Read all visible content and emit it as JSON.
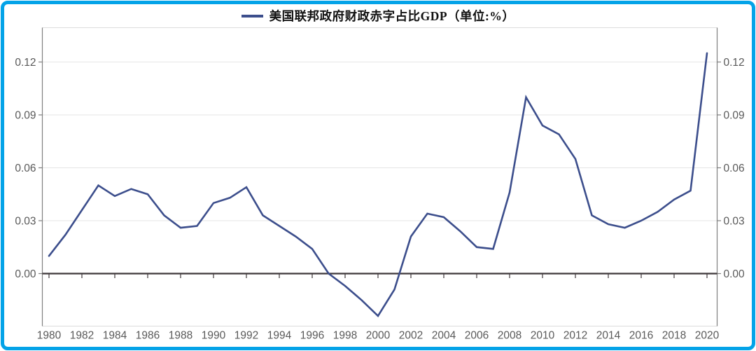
{
  "window": {
    "background_color": "#ffffff",
    "border_color": "#04A3E8"
  },
  "legend": {
    "label": "美国联邦政府财政赤字占比GDP（单位:%）"
  },
  "chart_data": {
    "type": "line",
    "title": "美国联邦政府财政赤字占比GDP（单位:%）",
    "x": [
      1980,
      1981,
      1982,
      1983,
      1984,
      1985,
      1986,
      1987,
      1988,
      1989,
      1990,
      1991,
      1992,
      1993,
      1994,
      1995,
      1996,
      1997,
      1998,
      1999,
      2000,
      2001,
      2002,
      2003,
      2004,
      2005,
      2006,
      2007,
      2008,
      2009,
      2010,
      2011,
      2012,
      2013,
      2014,
      2015,
      2016,
      2017,
      2018,
      2019,
      2020
    ],
    "series": [
      {
        "name": "美国联邦政府财政赤字占比GDP",
        "color": "#3C4E8C",
        "values": [
          0.01,
          0.022,
          0.036,
          0.05,
          0.044,
          0.048,
          0.045,
          0.033,
          0.026,
          0.027,
          0.04,
          0.043,
          0.049,
          0.033,
          0.027,
          0.021,
          0.014,
          0.0,
          -0.007,
          -0.015,
          -0.024,
          -0.009,
          0.021,
          0.034,
          0.032,
          0.024,
          0.015,
          0.014,
          0.046,
          0.1,
          0.084,
          0.079,
          0.065,
          0.033,
          0.028,
          0.026,
          0.03,
          0.035,
          0.042,
          0.047,
          0.125
        ]
      }
    ],
    "x_tick_labels": [
      "1980",
      "1982",
      "1984",
      "1986",
      "1988",
      "1990",
      "1992",
      "1994",
      "1996",
      "1998",
      "2000",
      "2002",
      "2004",
      "2006",
      "2008",
      "2010",
      "2012",
      "2014",
      "2016",
      "2018",
      "2020"
    ],
    "y_ticks": [
      {
        "value": 0.0,
        "label": "0.00"
      },
      {
        "value": 0.03,
        "label": "0.03"
      },
      {
        "value": 0.06,
        "label": "0.06"
      },
      {
        "value": 0.09,
        "label": "0.09"
      },
      {
        "value": 0.12,
        "label": "0.12"
      }
    ],
    "ylim": [
      -0.03,
      0.14
    ],
    "grid": true,
    "legend_position": "top-center",
    "axes": {
      "y_right_mirror": true,
      "zero_axis_color": "#3E373A",
      "grid_color": "#E5E5E5",
      "plot_border_color": "#DCDCDC",
      "spine_color": "#7F7F7F",
      "tick_label_color": "#595959"
    }
  }
}
